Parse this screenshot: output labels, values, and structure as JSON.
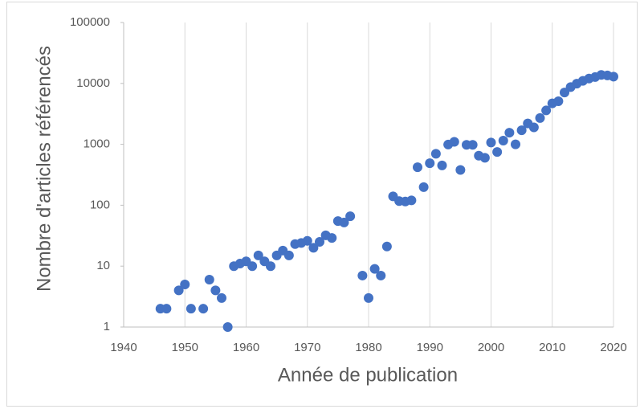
{
  "chart_data": {
    "type": "scatter",
    "x_label": "Année de publication",
    "y_label": "Nombre d'articles référencés",
    "color": "#4472c4",
    "log_y": true,
    "grid_x": true,
    "xlim": [
      1940,
      2020
    ],
    "xticks": [
      1940,
      1950,
      1960,
      1970,
      1980,
      1990,
      2000,
      2010,
      2020
    ],
    "ylim": [
      1,
      100000
    ],
    "yticks": [
      1,
      10,
      100,
      1000,
      10000,
      100000
    ],
    "x": [
      1946,
      1947,
      1949,
      1950,
      1951,
      1953,
      1954,
      1955,
      1956,
      1957,
      1958,
      1959,
      1960,
      1961,
      1962,
      1963,
      1964,
      1965,
      1966,
      1967,
      1968,
      1969,
      1970,
      1971,
      1972,
      1973,
      1974,
      1975,
      1976,
      1977,
      1979,
      1980,
      1981,
      1982,
      1983,
      1984,
      1985,
      1986,
      1987,
      1988,
      1989,
      1990,
      1991,
      1992,
      1993,
      1994,
      1995,
      1996,
      1997,
      1998,
      1999,
      2000,
      2001,
      2002,
      2003,
      2004,
      2005,
      2006,
      2007,
      2008,
      2009,
      2010,
      2011,
      2012,
      2013,
      2014,
      2015,
      2016,
      2017,
      2018,
      2019,
      2020
    ],
    "values": [
      2,
      2,
      4,
      5,
      2,
      2,
      6,
      4,
      3,
      1,
      10,
      11,
      12,
      10,
      15,
      12,
      10,
      15,
      18,
      15,
      23,
      24,
      26,
      20,
      25,
      32,
      29,
      55,
      52,
      66,
      7,
      3,
      9,
      7,
      21,
      140,
      117,
      115,
      120,
      420,
      198,
      490,
      700,
      450,
      990,
      1100,
      380,
      980,
      980,
      650,
      600,
      1070,
      750,
      1150,
      1550,
      1000,
      1700,
      2200,
      1900,
      2700,
      3600,
      4700,
      5100,
      7100,
      8700,
      9900,
      11000,
      12000,
      12700,
      13800,
      13500,
      12900
    ]
  }
}
